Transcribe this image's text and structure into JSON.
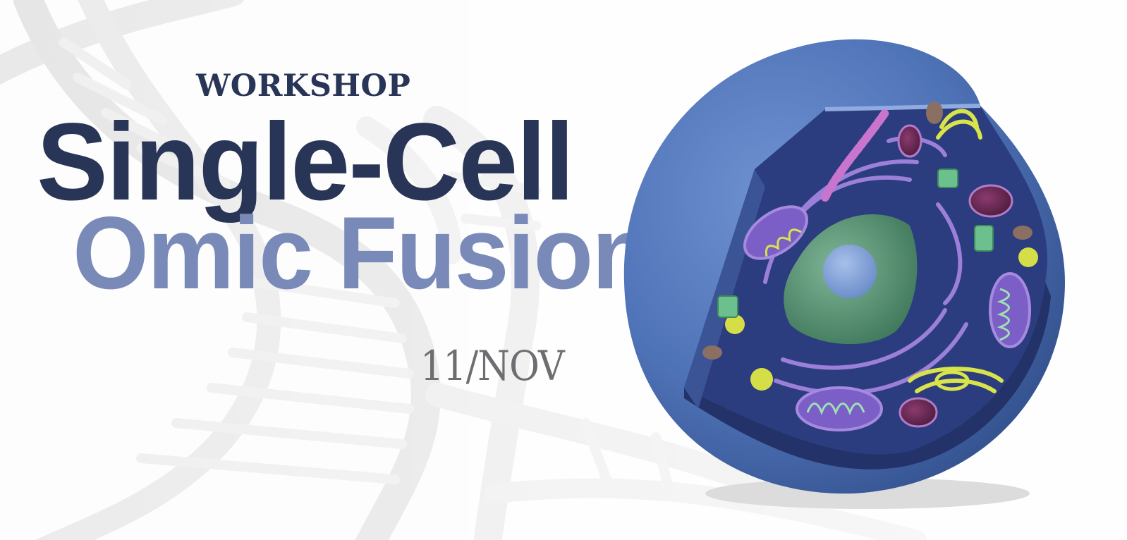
{
  "banner": {
    "kicker": "WORKSHOP",
    "title_line1": "Single-Cell",
    "title_line2": "Omic Fusion",
    "date": "11/NOV"
  },
  "colors": {
    "navy": "#283556",
    "periwinkle": "#7a8ab8",
    "date_grey": "#6e6e72",
    "cell_blue": "#4d73b8",
    "cell_interior": "#2b3d7e",
    "nucleus_green": "#4e8a6e",
    "nucleolus": "#7c9bd4",
    "mitochondria": "#9a7bd6",
    "golgi_yellow": "#d9e34a",
    "er_pink": "#c974c9",
    "vacuole_purple": "#6a2a55"
  },
  "illustrations": [
    "dna-helix-background",
    "animal-cell-cutaway"
  ]
}
